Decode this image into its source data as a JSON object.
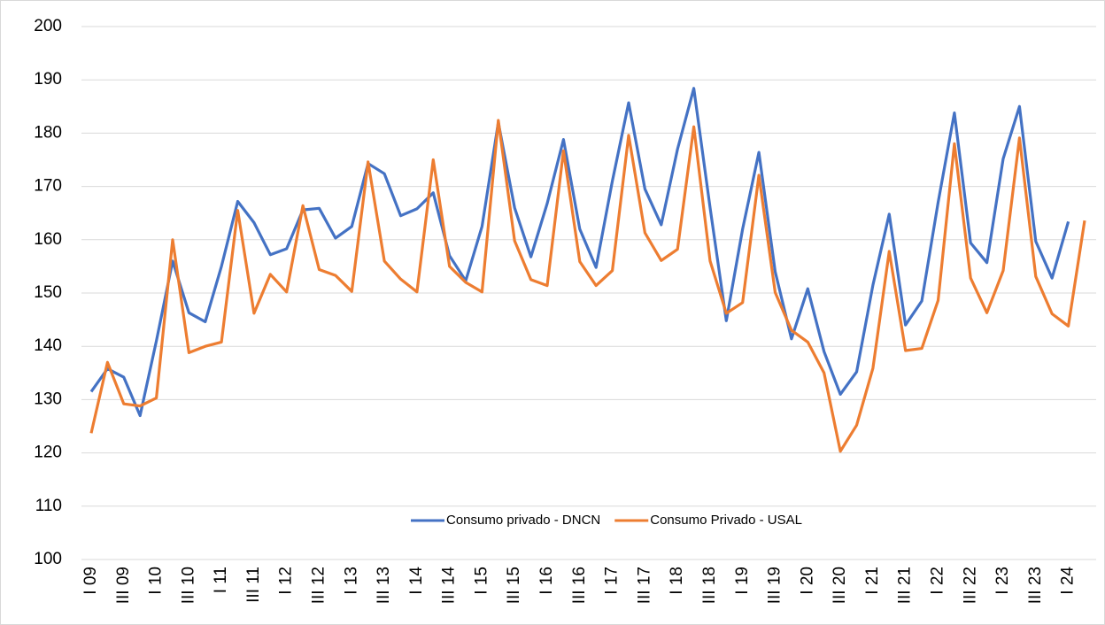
{
  "chart_data": {
    "type": "line",
    "categories": [
      "I 09",
      null,
      "III 09",
      null,
      "I 10",
      null,
      "III 10",
      null,
      "I 11",
      null,
      "III 11",
      null,
      "I 12",
      null,
      "III 12",
      null,
      "I 13",
      null,
      "III 13",
      null,
      "I 14",
      null,
      "III 14",
      null,
      "I 15",
      null,
      "III 15",
      null,
      "I 16",
      null,
      "III 16",
      null,
      "I 17",
      null,
      "III 17",
      null,
      "I 18",
      null,
      "III 18",
      null,
      "I 19",
      null,
      "III 19",
      null,
      "I 20",
      null,
      "III 20",
      null,
      "I 21",
      null,
      "III 21",
      null,
      "I 22",
      null,
      "III 22",
      null,
      "I 23",
      null,
      "III 23",
      null,
      "I 24",
      null
    ],
    "series": [
      {
        "name": "Consumo privado - DNCN",
        "color": "#4472c4",
        "values": [
          131.5,
          135.8,
          134.2,
          127,
          141,
          156,
          146.3,
          144.6,
          155,
          167.2,
          163.2,
          157.2,
          158.3,
          165.6,
          165.9,
          160.3,
          162.5,
          174.3,
          172.4,
          164.5,
          165.8,
          168.8,
          157,
          152.3,
          162.5,
          182,
          166,
          156.8,
          166.8,
          178.8,
          162,
          154.8,
          171,
          185.7,
          169.5,
          162.8,
          177,
          188.4,
          166,
          144.8,
          162,
          176.4,
          154,
          141.4,
          150.8,
          139,
          131,
          135.2,
          151.5,
          164.8,
          144,
          148.5,
          167,
          183.8,
          159.4,
          155.7,
          175.2,
          185,
          159.7,
          152.8,
          163.4,
          null
        ]
      },
      {
        "name": "Consumo Privado - USAL",
        "color": "#ed7d31",
        "values": [
          123.7,
          137,
          129.2,
          128.8,
          130.3,
          160,
          138.8,
          140,
          140.8,
          165.5,
          146.2,
          153.5,
          150.2,
          166.4,
          154.4,
          153.3,
          150.3,
          174.6,
          156,
          152.6,
          150.2,
          175,
          155,
          152,
          150.2,
          182.4,
          159.8,
          152.5,
          151.4,
          176.7,
          155.9,
          151.4,
          154.2,
          179.6,
          161.3,
          156.1,
          158.2,
          181.2,
          156,
          146.2,
          148.2,
          172.1,
          150.1,
          143,
          140.8,
          135,
          120.3,
          125.2,
          135.9,
          157.8,
          139.2,
          139.6,
          148.6,
          178,
          152.8,
          146.3,
          154.2,
          179.1,
          153.1,
          146.1,
          143.8,
          163.6
        ]
      }
    ],
    "ylim": [
      100,
      200
    ],
    "yticks": [
      100,
      110,
      120,
      130,
      140,
      150,
      160,
      170,
      180,
      190,
      200
    ],
    "grid": true,
    "legend": "bottom"
  }
}
